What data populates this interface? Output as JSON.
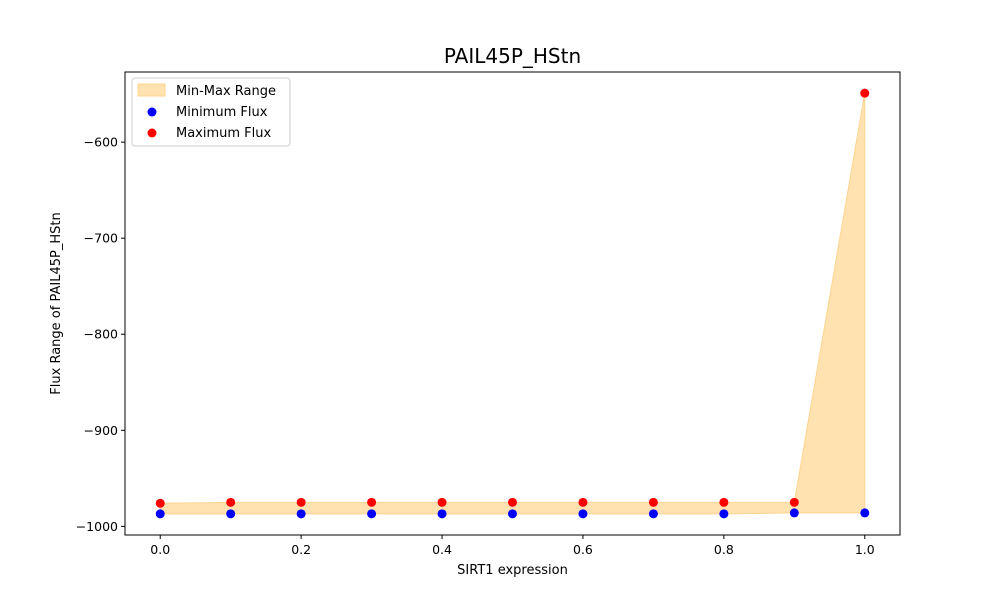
{
  "chart_data": {
    "type": "scatter",
    "title": "PAIL45P_HStn",
    "xlabel": "SIRT1 expression",
    "ylabel": "Flux Range of PAIL45P_HStn",
    "x": [
      0.0,
      0.1,
      0.2,
      0.3,
      0.4,
      0.5,
      0.6,
      0.7,
      0.8,
      0.9,
      1.0
    ],
    "xlim": [
      -0.05,
      1.05
    ],
    "ylim": [
      -1009,
      -527
    ],
    "xticks": [
      0.0,
      0.2,
      0.4,
      0.6,
      0.8,
      1.0
    ],
    "xtick_labels": [
      "0.0",
      "0.2",
      "0.4",
      "0.6",
      "0.8",
      "1.0"
    ],
    "yticks": [
      -1000,
      -900,
      -800,
      -700,
      -600
    ],
    "ytick_labels": [
      "−1000",
      "−900",
      "−800",
      "−700",
      "−600"
    ],
    "series": [
      {
        "name": "Min-Max Range",
        "kind": "fill_between",
        "color": "#ffe2b0",
        "edge_color": "#ffd490"
      },
      {
        "name": "Minimum Flux",
        "kind": "scatter",
        "color": "#0000ff",
        "values": [
          -987,
          -987,
          -987,
          -987,
          -987,
          -987,
          -987,
          -987,
          -987,
          -986,
          -986
        ]
      },
      {
        "name": "Maximum Flux",
        "kind": "scatter",
        "color": "#ff0000",
        "values": [
          -976,
          -975,
          -975,
          -975,
          -975,
          -975,
          -975,
          -975,
          -975,
          -975,
          -549
        ]
      }
    ],
    "legend": "top-left",
    "grid": false
  }
}
